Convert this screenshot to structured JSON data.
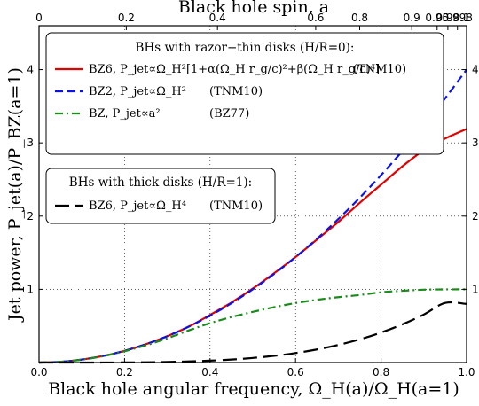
{
  "chart_data": {
    "type": "line",
    "xlabel": "Black hole angular frequency, Ω_H(a)/Ω_H(a=1)",
    "ylabel": "Jet power, P_jet(a)/P_BZ(a=1)",
    "top_xlabel": "Black hole spin, a",
    "xlim": [
      0,
      1
    ],
    "ylim": [
      0,
      4.6
    ],
    "x_ticks": [
      "0.0",
      "0.2",
      "0.4",
      "0.6",
      "0.8",
      "1.0"
    ],
    "y_ticks_left": [
      "1",
      "2",
      "3",
      "4"
    ],
    "y_ticks_right": [
      "1",
      "2",
      "3",
      "4"
    ],
    "top_ticks": [
      {
        "omega": 0,
        "label": "0"
      },
      {
        "omega": 0.2041,
        "label": "0.2"
      },
      {
        "omega": 0.4174,
        "label": "0.4"
      },
      {
        "omega": 0.6471,
        "label": "0.6"
      },
      {
        "omega": 0.75,
        "label": "0.8"
      },
      {
        "omega": 0.8718,
        "label": "0.9"
      },
      {
        "omega": 0.9311,
        "label": "0.95"
      },
      {
        "omega": 0.9562,
        "label": "0.98"
      },
      {
        "omega": 0.9787,
        "label": "0.998"
      },
      {
        "omega": 1.0,
        "label": "1"
      }
    ],
    "grid": true,
    "legend_groups": [
      {
        "title": "BHs with razor−thin disks (H/R=0):",
        "entries": [
          {
            "label": "BZ6, P_jet∝Ω_H²[1+α(Ω_H r_g/c)²+β(Ω_H r_g/c)⁴]",
            "ref": "(TNM10)",
            "color": "#e00000",
            "dash": "solid"
          },
          {
            "label": "BZ2, P_jet∝Ω_H²",
            "ref": "(TNM10)",
            "color": "#0a12e6",
            "dash": "dashed"
          },
          {
            "label": "BZ, P_jet∝a²",
            "ref": "(BZ77)",
            "color": "#1a8a1a",
            "dash": "dashdot"
          }
        ]
      },
      {
        "title": "BHs with thick disks (H/R=1):",
        "entries": [
          {
            "label": "BZ6, P_jet∝Ω_H⁴",
            "ref": "(TNM10)",
            "color": "#000000",
            "dash": "longdash"
          }
        ]
      }
    ],
    "series": [
      {
        "color": "#e00000",
        "dash": "solid",
        "x": [
          0,
          0.05,
          0.1,
          0.15,
          0.2,
          0.25,
          0.3,
          0.35,
          0.4,
          0.45,
          0.5,
          0.55,
          0.6,
          0.65,
          0.7,
          0.75,
          0.8,
          0.85,
          0.9,
          0.95,
          1.0
        ],
        "y": [
          0,
          0.01,
          0.04,
          0.09,
          0.16,
          0.25,
          0.36,
          0.49,
          0.65,
          0.82,
          1.01,
          1.22,
          1.44,
          1.68,
          1.92,
          2.18,
          2.43,
          2.68,
          2.9,
          3.06,
          3.19
        ]
      },
      {
        "color": "#0a12e6",
        "dash": "dashed",
        "x": [
          0,
          0.05,
          0.1,
          0.15,
          0.2,
          0.25,
          0.3,
          0.35,
          0.4,
          0.45,
          0.5,
          0.55,
          0.6,
          0.65,
          0.7,
          0.75,
          0.8,
          0.85,
          0.9,
          0.95,
          1.0
        ],
        "y": [
          0,
          0.01,
          0.04,
          0.09,
          0.16,
          0.25,
          0.36,
          0.49,
          0.64,
          0.81,
          1.0,
          1.21,
          1.44,
          1.69,
          1.96,
          2.25,
          2.56,
          2.89,
          3.24,
          3.61,
          4.0
        ]
      },
      {
        "color": "#1a8a1a",
        "dash": "dashdot",
        "x": [
          0,
          0.05,
          0.1,
          0.15,
          0.2,
          0.25,
          0.3,
          0.35,
          0.4,
          0.45,
          0.5,
          0.55,
          0.6,
          0.65,
          0.7,
          0.75,
          0.8,
          0.85,
          0.9,
          0.95,
          1.0
        ],
        "y": [
          0,
          0.01,
          0.04,
          0.087,
          0.154,
          0.235,
          0.331,
          0.438,
          0.538,
          0.621,
          0.692,
          0.756,
          0.813,
          0.857,
          0.893,
          0.922,
          0.96,
          0.98,
          0.995,
          0.999,
          1.0
        ]
      },
      {
        "color": "#000000",
        "dash": "longdash",
        "x": [
          0,
          0.05,
          0.1,
          0.15,
          0.2,
          0.25,
          0.3,
          0.35,
          0.4,
          0.45,
          0.5,
          0.55,
          0.6,
          0.65,
          0.7,
          0.75,
          0.8,
          0.85,
          0.9,
          0.95,
          1.0
        ],
        "y": [
          0,
          1e-05,
          0.0001,
          0.0005,
          0.0016,
          0.0039,
          0.0081,
          0.015,
          0.0256,
          0.041,
          0.0625,
          0.0915,
          0.1296,
          0.1785,
          0.2401,
          0.3164,
          0.4096,
          0.522,
          0.6561,
          0.8145,
          0.8
        ]
      }
    ]
  }
}
